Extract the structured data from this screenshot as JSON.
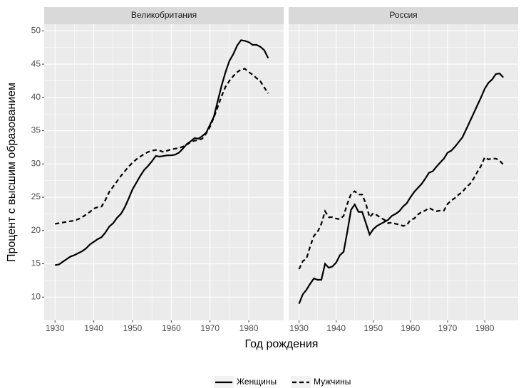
{
  "chart_data": [
    {
      "type": "line",
      "title": "Великобритания",
      "xlabel": "Год рождения",
      "ylabel": "Процент с высшим образованием",
      "x": [
        1930,
        1931,
        1932,
        1933,
        1934,
        1935,
        1936,
        1937,
        1938,
        1939,
        1940,
        1941,
        1942,
        1943,
        1944,
        1945,
        1946,
        1947,
        1948,
        1949,
        1950,
        1951,
        1952,
        1953,
        1954,
        1955,
        1956,
        1957,
        1958,
        1959,
        1960,
        1961,
        1962,
        1963,
        1964,
        1965,
        1966,
        1967,
        1968,
        1969,
        1970,
        1971,
        1972,
        1973,
        1974,
        1975,
        1976,
        1977,
        1978,
        1979,
        1980,
        1981,
        1982,
        1983,
        1984,
        1985
      ],
      "series": [
        {
          "name": "Женщины",
          "color": "#000000",
          "dash": "solid",
          "values": [
            14.8,
            14.9,
            15.3,
            15.7,
            16.1,
            16.3,
            16.6,
            16.9,
            17.3,
            17.9,
            18.3,
            18.7,
            19.0,
            19.7,
            20.6,
            21.1,
            21.9,
            22.5,
            23.5,
            24.8,
            26.2,
            27.2,
            28.2,
            29.1,
            29.7,
            30.4,
            31.2,
            31.1,
            31.2,
            31.3,
            31.3,
            31.4,
            31.7,
            32.3,
            33.0,
            33.4,
            33.9,
            33.8,
            34.2,
            34.7,
            35.9,
            37.1,
            39.5,
            41.8,
            43.8,
            45.5,
            46.5,
            47.8,
            48.6,
            48.5,
            48.3,
            47.9,
            47.9,
            47.6,
            47.1,
            45.9
          ]
        },
        {
          "name": "Мужчины",
          "color": "#000000",
          "dash": "dashed",
          "values": [
            21.0,
            21.1,
            21.2,
            21.3,
            21.4,
            21.5,
            21.7,
            22.0,
            22.4,
            22.8,
            23.3,
            23.5,
            23.6,
            24.6,
            25.8,
            26.6,
            27.4,
            28.2,
            28.9,
            29.6,
            30.2,
            30.7,
            31.1,
            31.5,
            31.8,
            32.0,
            32.1,
            32.0,
            31.8,
            32.0,
            32.2,
            32.3,
            32.4,
            32.6,
            32.9,
            33.3,
            33.5,
            33.6,
            33.8,
            34.6,
            35.6,
            37.0,
            38.6,
            40.2,
            41.6,
            42.5,
            43.2,
            43.8,
            44.2,
            44.3,
            43.8,
            43.4,
            42.9,
            42.4,
            41.5,
            40.6
          ]
        }
      ],
      "xlim": [
        1927.2,
        1989
      ],
      "xticks": [
        1930,
        1940,
        1950,
        1960,
        1970,
        1980
      ],
      "ylim": [
        6.5,
        51
      ],
      "yticks": [
        10,
        15,
        20,
        25,
        30,
        35,
        40,
        45,
        50
      ],
      "grid": true,
      "legend": "bottom"
    },
    {
      "type": "line",
      "title": "Россия",
      "x": [
        1930,
        1931,
        1932,
        1933,
        1934,
        1935,
        1936,
        1937,
        1938,
        1939,
        1940,
        1941,
        1942,
        1943,
        1944,
        1945,
        1946,
        1947,
        1948,
        1949,
        1950,
        1951,
        1952,
        1953,
        1954,
        1955,
        1956,
        1957,
        1958,
        1959,
        1960,
        1961,
        1962,
        1963,
        1964,
        1965,
        1966,
        1967,
        1968,
        1969,
        1970,
        1971,
        1972,
        1973,
        1974,
        1975,
        1976,
        1977,
        1978,
        1979,
        1980,
        1981,
        1982,
        1983,
        1984,
        1985
      ],
      "series": [
        {
          "color": "#000000",
          "dash": "solid",
          "values": [
            9.0,
            10.4,
            11.1,
            12.0,
            12.8,
            12.6,
            12.6,
            15.0,
            14.4,
            14.6,
            15.2,
            16.3,
            16.8,
            19.8,
            23.1,
            23.9,
            22.8,
            22.8,
            21.1,
            19.4,
            20.2,
            20.7,
            21.0,
            21.3,
            21.6,
            22.2,
            22.5,
            22.9,
            23.6,
            24.1,
            25.0,
            25.8,
            26.4,
            27.0,
            27.8,
            28.7,
            28.9,
            29.6,
            30.2,
            30.8,
            31.7,
            32.0,
            32.6,
            33.3,
            34.0,
            35.2,
            36.4,
            37.6,
            38.8,
            40.0,
            41.3,
            42.2,
            42.7,
            43.5,
            43.6,
            43.0
          ]
        },
        {
          "color": "#000000",
          "dash": "dashed",
          "values": [
            14.2,
            15.4,
            15.8,
            17.6,
            19.2,
            19.8,
            21.0,
            22.9,
            22.0,
            22.0,
            21.8,
            21.7,
            22.2,
            24.0,
            25.5,
            25.9,
            25.4,
            25.4,
            24.0,
            22.0,
            22.6,
            22.3,
            21.9,
            21.6,
            21.1,
            21.2,
            21.0,
            20.9,
            20.7,
            20.8,
            21.6,
            21.8,
            22.4,
            22.8,
            23.0,
            23.4,
            23.1,
            22.9,
            23.0,
            23.0,
            24.0,
            24.5,
            24.9,
            25.4,
            25.8,
            26.5,
            27.0,
            27.8,
            28.8,
            29.7,
            31.0,
            30.7,
            30.8,
            30.8,
            30.5,
            29.9
          ]
        }
      ],
      "xlim": [
        1927.2,
        1989
      ],
      "xticks": [
        1930,
        1940,
        1950,
        1960,
        1970,
        1980
      ],
      "ylim": [
        6.5,
        51
      ],
      "yticks": [
        10,
        15,
        20,
        25,
        30,
        35,
        40,
        45,
        50
      ],
      "grid": true
    }
  ]
}
